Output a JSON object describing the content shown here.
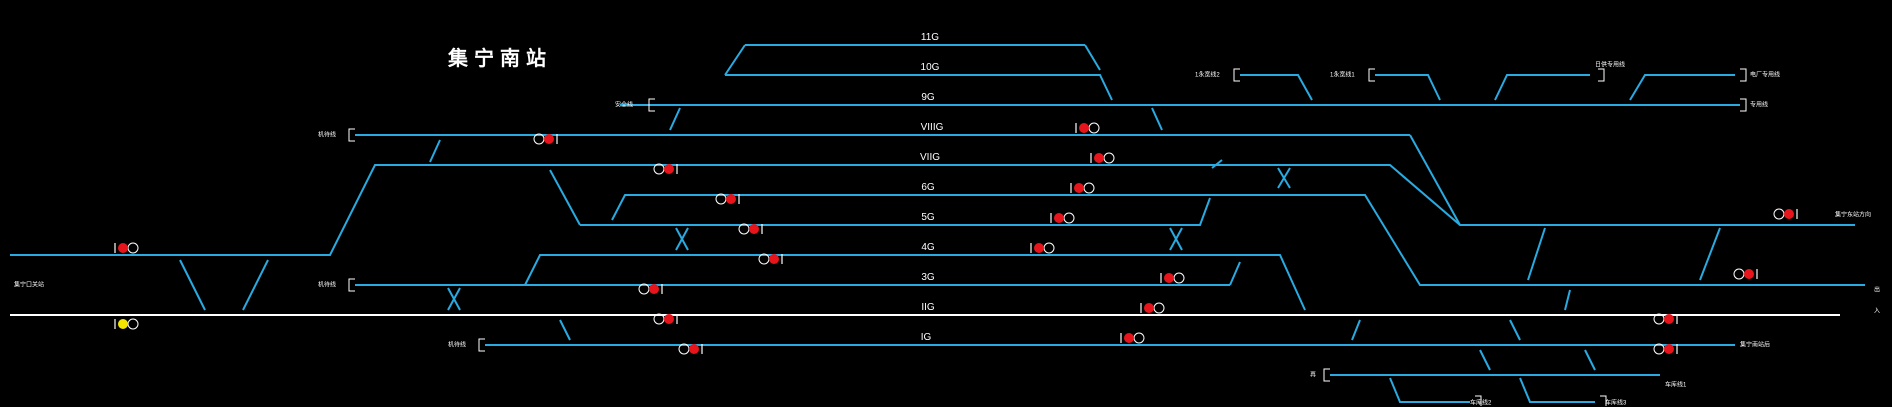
{
  "station": {
    "title": "集宁南站"
  },
  "tracks": [
    {
      "id": "11G",
      "label": "11G"
    },
    {
      "id": "10G",
      "label": "10G"
    },
    {
      "id": "9G",
      "label": "9G"
    },
    {
      "id": "VIIIG",
      "label": "VIIIG"
    },
    {
      "id": "VIIG",
      "label": "VIIG"
    },
    {
      "id": "6G",
      "label": "6G"
    },
    {
      "id": "5G",
      "label": "5G"
    },
    {
      "id": "4G",
      "label": "4G"
    },
    {
      "id": "3G",
      "label": "3G"
    },
    {
      "id": "IIG",
      "label": "IIG"
    },
    {
      "id": "IG",
      "label": "IG"
    }
  ],
  "labels": {
    "safety_line": "安全线",
    "depot_1": "机待线",
    "depot_2": "机待线",
    "depot_3": "机待线",
    "west_station": "集宁口关站",
    "line_1_2": "1永宽线2",
    "line_1_1": "1永宽线1",
    "line_right_top": "日供专用线",
    "line_right_a": "电厂专用线",
    "line_right_b": "专用线",
    "line_right_c": "集宁东站方向",
    "line_right_d": "集宁南站后",
    "line_bottom_a": "再",
    "line_bottom_b": "车库线1",
    "line_bottom_c": "车库线2",
    "line_bottom_d": "车库线3",
    "edge_1": "出",
    "edge_2": "入"
  },
  "colors": {
    "track": "#29abe2",
    "main_line": "#ffffff",
    "signal_red": "#e8141b",
    "signal_yellow": "#f5e600",
    "signal_ring": "#ffffff",
    "background": "#000000"
  }
}
